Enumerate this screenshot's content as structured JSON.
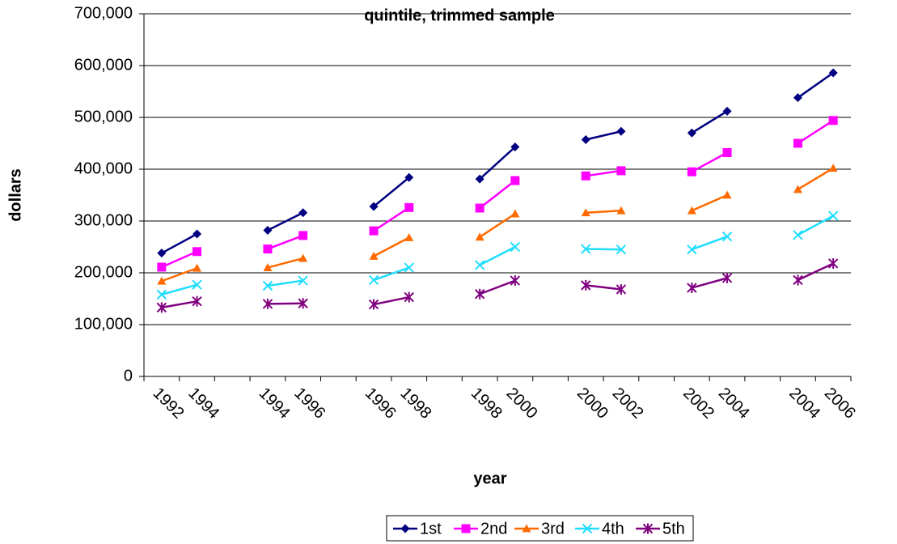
{
  "chart_data": {
    "type": "line",
    "title": "quintile, trimmed sample",
    "x_label": "year",
    "y_label": "dollars",
    "categories": [
      "1992",
      "1994",
      null,
      "1994",
      "1996",
      null,
      "1996",
      "1998",
      null,
      "1998",
      "2000",
      null,
      "2000",
      "2002",
      null,
      "2002",
      "2004",
      null,
      "2004",
      "2006"
    ],
    "series": [
      {
        "name": "1st",
        "color": "#000080",
        "marker": "diamond",
        "values": [
          238000,
          275000,
          null,
          282000,
          316000,
          null,
          328000,
          384000,
          null,
          381000,
          443000,
          null,
          457000,
          473000,
          null,
          470000,
          512000,
          null,
          538000,
          586000
        ]
      },
      {
        "name": "2nd",
        "color": "#ff00ff",
        "marker": "square",
        "values": [
          211000,
          241000,
          null,
          246000,
          272000,
          null,
          281000,
          326000,
          null,
          325000,
          378000,
          null,
          387000,
          397000,
          null,
          395000,
          432000,
          null,
          450000,
          494000
        ]
      },
      {
        "name": "3rd",
        "color": "#ff6a00",
        "marker": "triangle",
        "values": [
          184000,
          209000,
          null,
          210000,
          228000,
          null,
          232000,
          268000,
          null,
          269000,
          314000,
          null,
          316000,
          320000,
          null,
          320000,
          350000,
          null,
          361000,
          402000
        ]
      },
      {
        "name": "4th",
        "color": "#22ddff",
        "marker": "x",
        "values": [
          158000,
          177000,
          null,
          175000,
          185000,
          null,
          186000,
          210000,
          null,
          215000,
          250000,
          null,
          246000,
          245000,
          null,
          245000,
          270000,
          null,
          273000,
          310000
        ]
      },
      {
        "name": "5th",
        "color": "#800080",
        "marker": "star",
        "values": [
          133000,
          145000,
          null,
          140000,
          141000,
          null,
          139000,
          153000,
          null,
          159000,
          185000,
          null,
          176000,
          168000,
          null,
          171000,
          190000,
          null,
          186000,
          218000
        ]
      }
    ],
    "ylim": [
      0,
      700000
    ],
    "yticks": [
      0,
      {
        "value": 100000,
        "label": "100,000"
      },
      {
        "value": 200000,
        "label": "200,000"
      },
      {
        "value": 300000,
        "label": "300,000"
      },
      {
        "value": 400000,
        "label": "400,000"
      },
      {
        "value": 500000,
        "label": "500,000"
      },
      {
        "value": 600000,
        "label": "600,000"
      },
      {
        "value": 700000,
        "label": "700,000"
      }
    ],
    "grid": true,
    "legend": "bottom"
  }
}
